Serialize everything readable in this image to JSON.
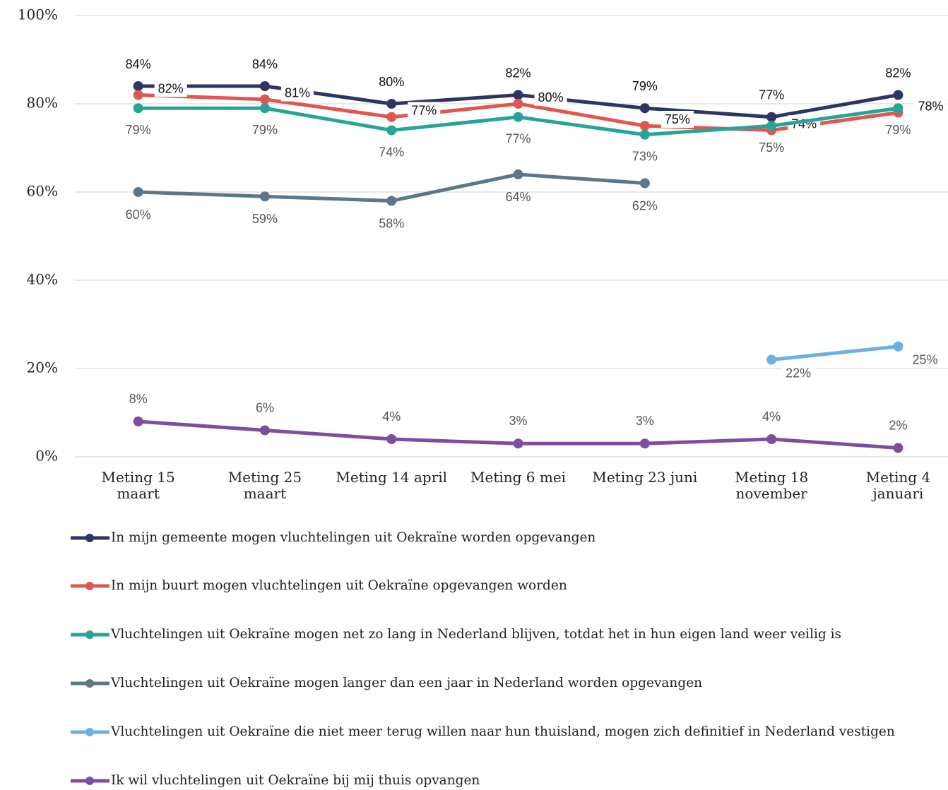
{
  "chart_data": {
    "type": "line",
    "categories": [
      "Meting 15\nmaart",
      "Meting 25\nmaart",
      "Meting 14 april",
      "Meting 6 mei",
      "Meting 23 juni",
      "Meting 18\nnovember",
      "Meting 4\njanuari"
    ],
    "ylim": [
      0,
      100
    ],
    "yticks": [
      {
        "value": 0,
        "label": "0%"
      },
      {
        "value": 20,
        "label": "20%"
      },
      {
        "value": 40,
        "label": "40%"
      },
      {
        "value": 60,
        "label": "60%"
      },
      {
        "value": 80,
        "label": "80%"
      },
      {
        "value": 100,
        "label": "100%"
      }
    ],
    "grid": true,
    "legend": "bottom",
    "series": [
      {
        "name": "In mijn gemeente mogen vluchtelingen uit Oekraïne worden opgevangen",
        "color": "#2e3563",
        "values": [
          84,
          84,
          80,
          82,
          79,
          77,
          82
        ],
        "value_labels": [
          "84%",
          "84%",
          "80%",
          "82%",
          "79%",
          "77%",
          "82%"
        ]
      },
      {
        "name": "In mijn buurt mogen vluchtelingen uit Oekraïne opgevangen worden",
        "color": "#e0574f",
        "values": [
          82,
          81,
          77,
          80,
          75,
          74,
          78
        ],
        "value_labels": [
          "82%",
          "81%",
          "77%",
          "80%",
          "75%",
          "74%",
          "78%"
        ]
      },
      {
        "name": "Vluchtelingen uit Oekraïne mogen net zo lang in Nederland blijven, totdat het in hun eigen land weer veilig is",
        "color": "#26a597",
        "values": [
          79,
          79,
          74,
          77,
          73,
          75,
          79
        ],
        "value_labels": [
          "79%",
          "79%",
          "74%",
          "77%",
          "73%",
          "75%",
          "79%"
        ]
      },
      {
        "name": "Vluchtelingen uit Oekraïne mogen langer dan een jaar in Nederland worden opgevangen",
        "color": "#5d7789",
        "values": [
          60,
          59,
          58,
          64,
          62,
          null,
          null
        ],
        "value_labels": [
          "60%",
          "59%",
          "58%",
          "64%",
          "62%",
          null,
          null
        ]
      },
      {
        "name": "Vluchtelingen uit Oekraïne die niet meer terug willen naar hun thuisland, mogen zich definitief in Nederland vestigen",
        "color": "#6cb0e2",
        "values": [
          null,
          null,
          null,
          null,
          null,
          22,
          25
        ],
        "value_labels": [
          null,
          null,
          null,
          null,
          null,
          "22%",
          "25%"
        ]
      },
      {
        "name": "Ik wil vluchtelingen uit Oekraïne bij mij thuis opvangen",
        "color": "#7d4e9e",
        "values": [
          8,
          6,
          4,
          3,
          3,
          4,
          2
        ],
        "value_labels": [
          "8%",
          "6%",
          "4%",
          "3%",
          "3%",
          "4%",
          "2%"
        ]
      }
    ]
  }
}
